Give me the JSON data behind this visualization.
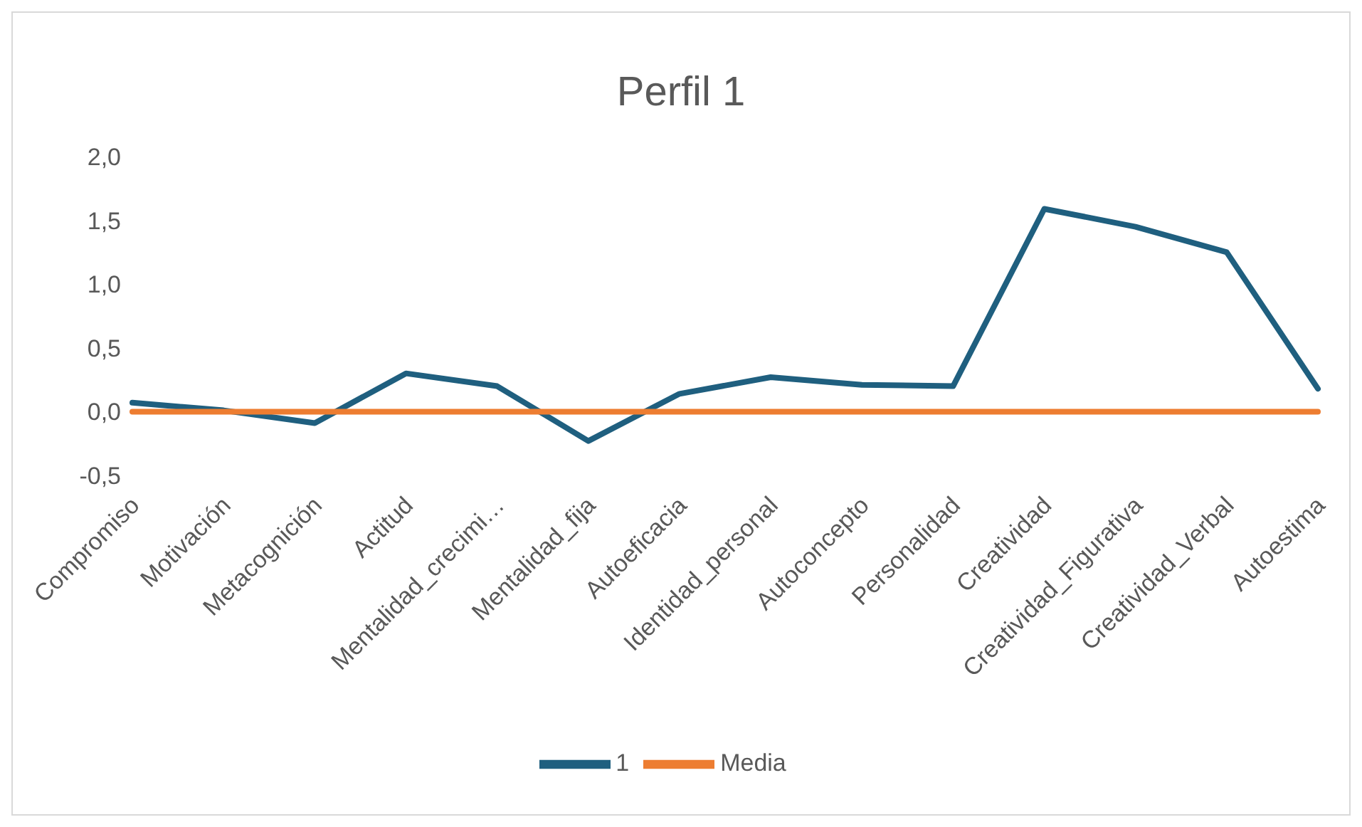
{
  "chart_data": {
    "type": "line",
    "title": "Perfil 1",
    "categories": [
      "Compromiso",
      "Motivación",
      "Metacognición",
      "Actitud",
      "Mentalidad_crecimi…",
      "Mentalidad_fija",
      "Autoeficacia",
      "Identidad_personal",
      "Autoconcepto",
      "Personalidad",
      "Creatividad",
      "Creatividad_Figurativa",
      "Creatividad_Verbal",
      "Autoestima"
    ],
    "series": [
      {
        "name": "1",
        "color": "#1f5f7f",
        "values": [
          0.07,
          0.01,
          -0.09,
          0.3,
          0.2,
          -0.23,
          0.14,
          0.27,
          0.21,
          0.2,
          1.59,
          1.45,
          1.25,
          0.18
        ]
      },
      {
        "name": "Media",
        "color": "#ed7d31",
        "values": [
          0,
          0,
          0,
          0,
          0,
          0,
          0,
          0,
          0,
          0,
          0,
          0,
          0,
          0
        ]
      }
    ],
    "ylim": [
      -0.5,
      2
    ],
    "yticks": [
      {
        "value": -0.5,
        "label": "-0,5"
      },
      {
        "value": 0,
        "label": "0,0"
      },
      {
        "value": 0.5,
        "label": "0,5"
      },
      {
        "value": 1,
        "label": "1,0"
      },
      {
        "value": 1.5,
        "label": "1,5"
      },
      {
        "value": 2,
        "label": "2,0"
      }
    ],
    "grid": false,
    "legend": "bottom",
    "marker": "none",
    "line_style": "solid"
  }
}
